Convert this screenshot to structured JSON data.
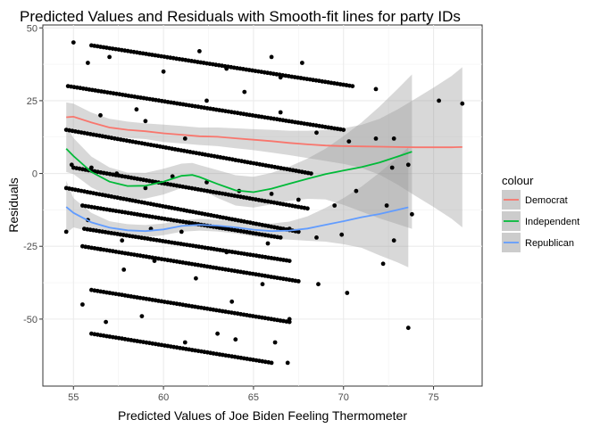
{
  "chart_data": {
    "type": "scatter",
    "title": "Predicted Values and Residuals with Smooth-fit lines for party IDs",
    "xlabel": "Predicted Values of Joe Biden Feeling Thermometer",
    "ylabel": "Residuals",
    "xlim": [
      53.3,
      77.7
    ],
    "ylim": [
      -73,
      51
    ],
    "x_ticks": [
      55,
      60,
      65,
      70,
      75
    ],
    "x_tick_labels": [
      "55",
      "60",
      "65",
      "70",
      "75"
    ],
    "y_ticks": [
      -50,
      -25,
      0,
      25,
      50
    ],
    "y_tick_labels": [
      "-50",
      "-25",
      "0",
      "25",
      "50"
    ],
    "grid": true,
    "legend": {
      "title": "colour",
      "position": "right",
      "entries": [
        {
          "label": "Democrat",
          "color": "#F8766D"
        },
        {
          "label": "Independent",
          "color": "#00BA38"
        },
        {
          "label": "Republican",
          "color": "#619CFF"
        }
      ]
    },
    "point_color": "#000000",
    "point_bands": [
      {
        "x": [
          56,
          70.5
        ],
        "y": [
          44,
          30
        ]
      },
      {
        "x": [
          54.7,
          70
        ],
        "y": [
          30,
          15
        ]
      },
      {
        "x": [
          54.6,
          68.2
        ],
        "y": [
          15,
          0
        ]
      },
      {
        "x": [
          55,
          68
        ],
        "y": [
          2,
          -12
        ]
      },
      {
        "x": [
          55.5,
          66.5
        ],
        "y": [
          -11,
          -22
        ]
      },
      {
        "x": [
          54.6,
          67.5
        ],
        "y": [
          -5,
          -20
        ]
      },
      {
        "x": [
          55.6,
          67
        ],
        "y": [
          -19,
          -30
        ]
      },
      {
        "x": [
          55.5,
          67.5
        ],
        "y": [
          -25,
          -37
        ]
      },
      {
        "x": [
          56,
          67
        ],
        "y": [
          -40,
          -51
        ]
      },
      {
        "x": [
          56,
          66
        ],
        "y": [
          -55,
          -65
        ]
      }
    ],
    "scattered_points": [
      [
        55,
        45
      ],
      [
        55.8,
        38
      ],
      [
        57,
        40
      ],
      [
        60,
        35
      ],
      [
        62,
        42
      ],
      [
        63.5,
        36
      ],
      [
        66,
        40
      ],
      [
        66.5,
        33
      ],
      [
        67.7,
        38
      ],
      [
        71.8,
        29
      ],
      [
        56.5,
        20
      ],
      [
        58.5,
        22
      ],
      [
        59,
        18
      ],
      [
        61.2,
        12
      ],
      [
        62.4,
        25
      ],
      [
        64.5,
        28
      ],
      [
        66.5,
        21
      ],
      [
        68.5,
        14
      ],
      [
        70.3,
        11
      ],
      [
        71.8,
        12
      ],
      [
        72.8,
        12
      ],
      [
        75.3,
        25
      ],
      [
        76.6,
        24
      ],
      [
        54.9,
        3
      ],
      [
        56,
        2
      ],
      [
        57.4,
        0
      ],
      [
        59,
        -5
      ],
      [
        60.5,
        -1
      ],
      [
        62.4,
        -3
      ],
      [
        64.2,
        -6
      ],
      [
        66,
        -7
      ],
      [
        67.5,
        -9
      ],
      [
        69.5,
        -11
      ],
      [
        70.7,
        -6
      ],
      [
        72.7,
        2
      ],
      [
        73.6,
        3
      ],
      [
        54.6,
        -20
      ],
      [
        55.8,
        -16
      ],
      [
        57.7,
        -23
      ],
      [
        59.3,
        -19
      ],
      [
        61,
        -20
      ],
      [
        63.5,
        -27
      ],
      [
        65.8,
        -24
      ],
      [
        67,
        -19
      ],
      [
        68.5,
        -22
      ],
      [
        69.9,
        -21
      ],
      [
        72.4,
        -11
      ],
      [
        72.8,
        -23
      ],
      [
        73.8,
        -14
      ],
      [
        56.5,
        -26
      ],
      [
        57.8,
        -33
      ],
      [
        59.5,
        -30
      ],
      [
        61.8,
        -36
      ],
      [
        63.8,
        -44
      ],
      [
        65.5,
        -38
      ],
      [
        67,
        -50
      ],
      [
        68.6,
        -38
      ],
      [
        70.2,
        -41
      ],
      [
        72.2,
        -31
      ],
      [
        73.6,
        -53
      ],
      [
        55.5,
        -45
      ],
      [
        56.8,
        -51
      ],
      [
        58.8,
        -49
      ],
      [
        61.2,
        -58
      ],
      [
        63,
        -55
      ],
      [
        64,
        -57
      ],
      [
        66.2,
        -58
      ],
      [
        66.9,
        -65
      ]
    ],
    "smooth_lines": [
      {
        "name": "Democrat",
        "color": "#F8766D",
        "x": [
          54.6,
          55,
          56,
          57,
          58,
          59,
          60,
          61,
          62,
          63,
          64,
          65,
          66,
          67,
          68,
          69,
          70,
          71,
          72,
          73,
          74,
          75,
          76,
          76.6
        ],
        "y": [
          19.3,
          19.5,
          17.5,
          15.8,
          15,
          14.5,
          13.8,
          13.3,
          12.8,
          12.6,
          12.1,
          11.6,
          11.1,
          10.5,
          10,
          9.6,
          9.4,
          9.3,
          9.2,
          9.1,
          9.0,
          9.0,
          9.0,
          9.1
        ],
        "upper": [
          24.4,
          24,
          20.9,
          18.8,
          17.8,
          17.2,
          16.8,
          16.3,
          15.8,
          15.8,
          15.5,
          15.2,
          15,
          14.7,
          14.7,
          14.9,
          15.5,
          16.7,
          18.8,
          22,
          25.7,
          29.5,
          33.5,
          36.5
        ],
        "lower": [
          14.2,
          15,
          14.1,
          12.8,
          12.2,
          11.8,
          10.8,
          10.3,
          9.8,
          9.4,
          8.7,
          8,
          7.2,
          6.3,
          5.3,
          4.3,
          3.3,
          1.9,
          -0.4,
          -3.8,
          -7.7,
          -11.5,
          -15.5,
          -18.5
        ]
      },
      {
        "name": "Independent",
        "color": "#00BA38",
        "x": [
          54.6,
          55,
          56,
          57,
          58,
          59,
          60,
          61,
          61.6,
          62,
          63,
          64,
          65,
          66,
          67,
          68,
          69,
          70,
          71,
          72,
          73,
          73.8
        ],
        "y": [
          8.5,
          6,
          0.5,
          -2.8,
          -4.3,
          -4.2,
          -2.8,
          -0.8,
          -0.5,
          -1.2,
          -3.6,
          -5.8,
          -6.4,
          -5.2,
          -3.5,
          -1.8,
          -0.2,
          1,
          2.2,
          3.8,
          5.8,
          7.5
        ],
        "upper": [
          16.5,
          12.2,
          5.8,
          2.1,
          0.3,
          0.2,
          1.6,
          3.4,
          3.6,
          2.9,
          1.2,
          -0.6,
          -1.1,
          0.2,
          2.4,
          5.1,
          8.5,
          12.8,
          17.5,
          23,
          29,
          34
        ],
        "lower": [
          0.5,
          -0.2,
          -4.8,
          -7.7,
          -8.9,
          -8.6,
          -7.2,
          -5,
          -4.6,
          -5.3,
          -8.4,
          -11,
          -11.7,
          -10.6,
          -9.4,
          -8.7,
          -8.9,
          -10.8,
          -13.1,
          -15.4,
          -17.4,
          -19
        ]
      },
      {
        "name": "Republican",
        "color": "#619CFF",
        "x": [
          54.6,
          55,
          56,
          57,
          58,
          59,
          60,
          61,
          62,
          63,
          64,
          65,
          66,
          67,
          68,
          69,
          70,
          71,
          72,
          73,
          73.6
        ],
        "y": [
          -11.5,
          -13.5,
          -16.8,
          -18.6,
          -19.5,
          -19.8,
          -19.2,
          -18,
          -17.6,
          -17.9,
          -18.5,
          -19.3,
          -19.8,
          -19.6,
          -18.9,
          -17.6,
          -16.4,
          -15,
          -13.9,
          -12.5,
          -11.6
        ],
        "upper": [
          -2.5,
          -8.5,
          -13.5,
          -16.4,
          -17.4,
          -17.7,
          -17.2,
          -16,
          -15.6,
          -15.9,
          -16.4,
          -17,
          -17.2,
          -16.5,
          -14.7,
          -11.8,
          -8.5,
          -4.5,
          0.3,
          5.5,
          9
        ],
        "lower": [
          -20.5,
          -18.5,
          -20.1,
          -20.8,
          -21.6,
          -21.9,
          -21.2,
          -20,
          -19.6,
          -19.9,
          -20.6,
          -21.6,
          -22.4,
          -22.7,
          -23.1,
          -23.4,
          -24.3,
          -25.5,
          -28.1,
          -30.5,
          -32.2
        ]
      }
    ]
  }
}
